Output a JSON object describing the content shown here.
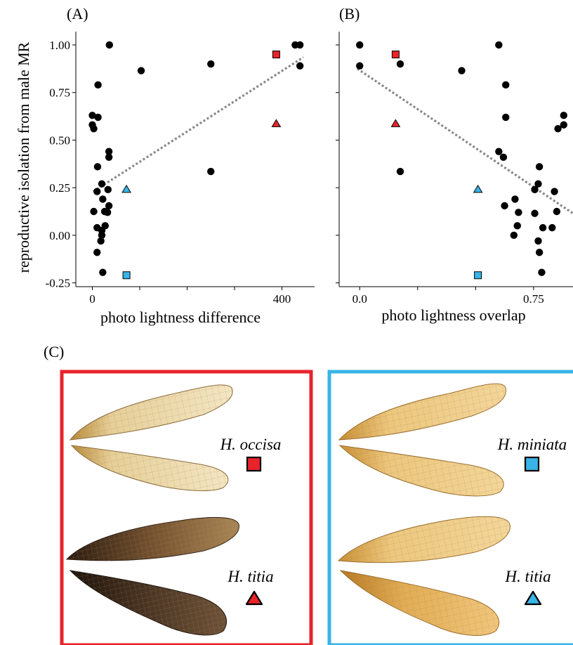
{
  "colors": {
    "red": "#e8232a",
    "blue": "#38b4e6",
    "trend": "#888888",
    "wing_pale": "#e9d7a6",
    "wing_amber": "#e3b25c",
    "wing_dark": "#3a2a1f",
    "wing_vein": "#7a5a2a"
  },
  "chart_data": [
    {
      "panel_label": "(A)",
      "type": "scatter",
      "xlabel": "photo lightness difference",
      "ylabel": "reproductive isolation from male MR",
      "xlim": [
        -20,
        460
      ],
      "ylim": [
        -0.27,
        1.07
      ],
      "xticks": [
        0,
        400
      ],
      "xtick_labels": [
        "0",
        "400"
      ],
      "xticks_minor": [
        100,
        200,
        300
      ],
      "yticks": [
        -0.25,
        0,
        0.25,
        0.5,
        0.75,
        1.0
      ],
      "ytick_labels": [
        "-0.25",
        "0.00",
        "0.25",
        "0.50",
        "0.75",
        "1.00"
      ],
      "grid": false,
      "trend_line": {
        "x": [
          2,
          445
        ],
        "y": [
          0.23,
          0.935
        ]
      },
      "points": [
        {
          "x": 36,
          "y": 1.0
        },
        {
          "x": 103,
          "y": 0.865
        },
        {
          "x": 250,
          "y": 0.9
        },
        {
          "x": 428,
          "y": 1.0
        },
        {
          "x": 438,
          "y": 1.0
        },
        {
          "x": 438,
          "y": 0.89
        },
        {
          "x": 12,
          "y": 0.79
        },
        {
          "x": 0,
          "y": 0.63
        },
        {
          "x": 12,
          "y": 0.62
        },
        {
          "x": 0,
          "y": 0.58
        },
        {
          "x": 3,
          "y": 0.56
        },
        {
          "x": 35,
          "y": 0.44
        },
        {
          "x": 35,
          "y": 0.41
        },
        {
          "x": 11,
          "y": 0.36
        },
        {
          "x": 250,
          "y": 0.335
        },
        {
          "x": 20,
          "y": 0.27
        },
        {
          "x": 33,
          "y": 0.24
        },
        {
          "x": 10,
          "y": 0.23
        },
        {
          "x": 22,
          "y": 0.19
        },
        {
          "x": 35,
          "y": 0.155
        },
        {
          "x": 3,
          "y": 0.125
        },
        {
          "x": 26,
          "y": 0.125
        },
        {
          "x": 32,
          "y": 0.12
        },
        {
          "x": 10,
          "y": 0.04
        },
        {
          "x": 27,
          "y": 0.05
        },
        {
          "x": 20,
          "y": 0.025
        },
        {
          "x": 20,
          "y": 0.0
        },
        {
          "x": 18,
          "y": -0.03
        },
        {
          "x": 10,
          "y": -0.09
        },
        {
          "x": 22,
          "y": -0.195
        }
      ],
      "markers": [
        {
          "shape": "square",
          "color": "red",
          "x": 388,
          "y": 0.95
        },
        {
          "shape": "triangle",
          "color": "red",
          "x": 388,
          "y": 0.585
        },
        {
          "shape": "triangle",
          "color": "blue",
          "x": 72,
          "y": 0.24
        },
        {
          "shape": "square",
          "color": "blue",
          "x": 72,
          "y": -0.21
        }
      ]
    },
    {
      "panel_label": "(B)",
      "type": "scatter",
      "xlabel": "photo lightness overlap",
      "ylabel": "",
      "xlim": [
        -0.04,
        0.92
      ],
      "ylim": [
        -0.27,
        1.07
      ],
      "xticks": [
        0,
        0.75
      ],
      "xtick_labels": [
        "0.0",
        "0.75"
      ],
      "xticks_minor": [
        0.25,
        0.5
      ],
      "yticks": [
        -0.25,
        0,
        0.25,
        0.5,
        0.75,
        1.0
      ],
      "grid": false,
      "trend_line": {
        "x": [
          -0.01,
          0.92
        ],
        "y": [
          0.875,
          0.115
        ]
      },
      "points": [
        {
          "x": 0.0,
          "y": 1.0
        },
        {
          "x": 0.0,
          "y": 0.89
        },
        {
          "x": 0.175,
          "y": 0.9
        },
        {
          "x": 0.44,
          "y": 0.865
        },
        {
          "x": 0.6,
          "y": 1.0
        },
        {
          "x": 0.63,
          "y": 0.79
        },
        {
          "x": 0.63,
          "y": 0.62
        },
        {
          "x": 0.6,
          "y": 0.44
        },
        {
          "x": 0.62,
          "y": 0.41
        },
        {
          "x": 0.175,
          "y": 0.335
        },
        {
          "x": 0.88,
          "y": 0.63
        },
        {
          "x": 0.88,
          "y": 0.58
        },
        {
          "x": 0.855,
          "y": 0.56
        },
        {
          "x": 0.775,
          "y": 0.36
        },
        {
          "x": 0.77,
          "y": 0.27
        },
        {
          "x": 0.755,
          "y": 0.24
        },
        {
          "x": 0.84,
          "y": 0.23
        },
        {
          "x": 0.67,
          "y": 0.19
        },
        {
          "x": 0.625,
          "y": 0.155
        },
        {
          "x": 0.685,
          "y": 0.12
        },
        {
          "x": 0.755,
          "y": 0.115
        },
        {
          "x": 0.85,
          "y": 0.125
        },
        {
          "x": 0.68,
          "y": 0.05
        },
        {
          "x": 0.79,
          "y": 0.04
        },
        {
          "x": 0.83,
          "y": 0.04
        },
        {
          "x": 0.665,
          "y": 0.0
        },
        {
          "x": 0.77,
          "y": -0.03
        },
        {
          "x": 0.775,
          "y": -0.09
        },
        {
          "x": 0.785,
          "y": -0.195
        }
      ],
      "markers": [
        {
          "shape": "square",
          "color": "red",
          "x": 0.155,
          "y": 0.95
        },
        {
          "shape": "triangle",
          "color": "red",
          "x": 0.155,
          "y": 0.585
        },
        {
          "shape": "triangle",
          "color": "blue",
          "x": 0.51,
          "y": 0.24
        },
        {
          "shape": "square",
          "color": "blue",
          "x": 0.51,
          "y": -0.21
        }
      ]
    }
  ],
  "panel_c": {
    "label": "(C)",
    "boxes": [
      {
        "border_color": "red",
        "species": [
          {
            "name": "H. occisa",
            "marker": "square",
            "wing_tone": "pale"
          },
          {
            "name": "H. titia",
            "marker": "triangle",
            "wing_tone": "dark"
          }
        ]
      },
      {
        "border_color": "blue",
        "species": [
          {
            "name": "H. miniata",
            "marker": "square",
            "wing_tone": "amber"
          },
          {
            "name": "H. titia",
            "marker": "triangle",
            "wing_tone": "amber"
          }
        ]
      }
    ]
  }
}
